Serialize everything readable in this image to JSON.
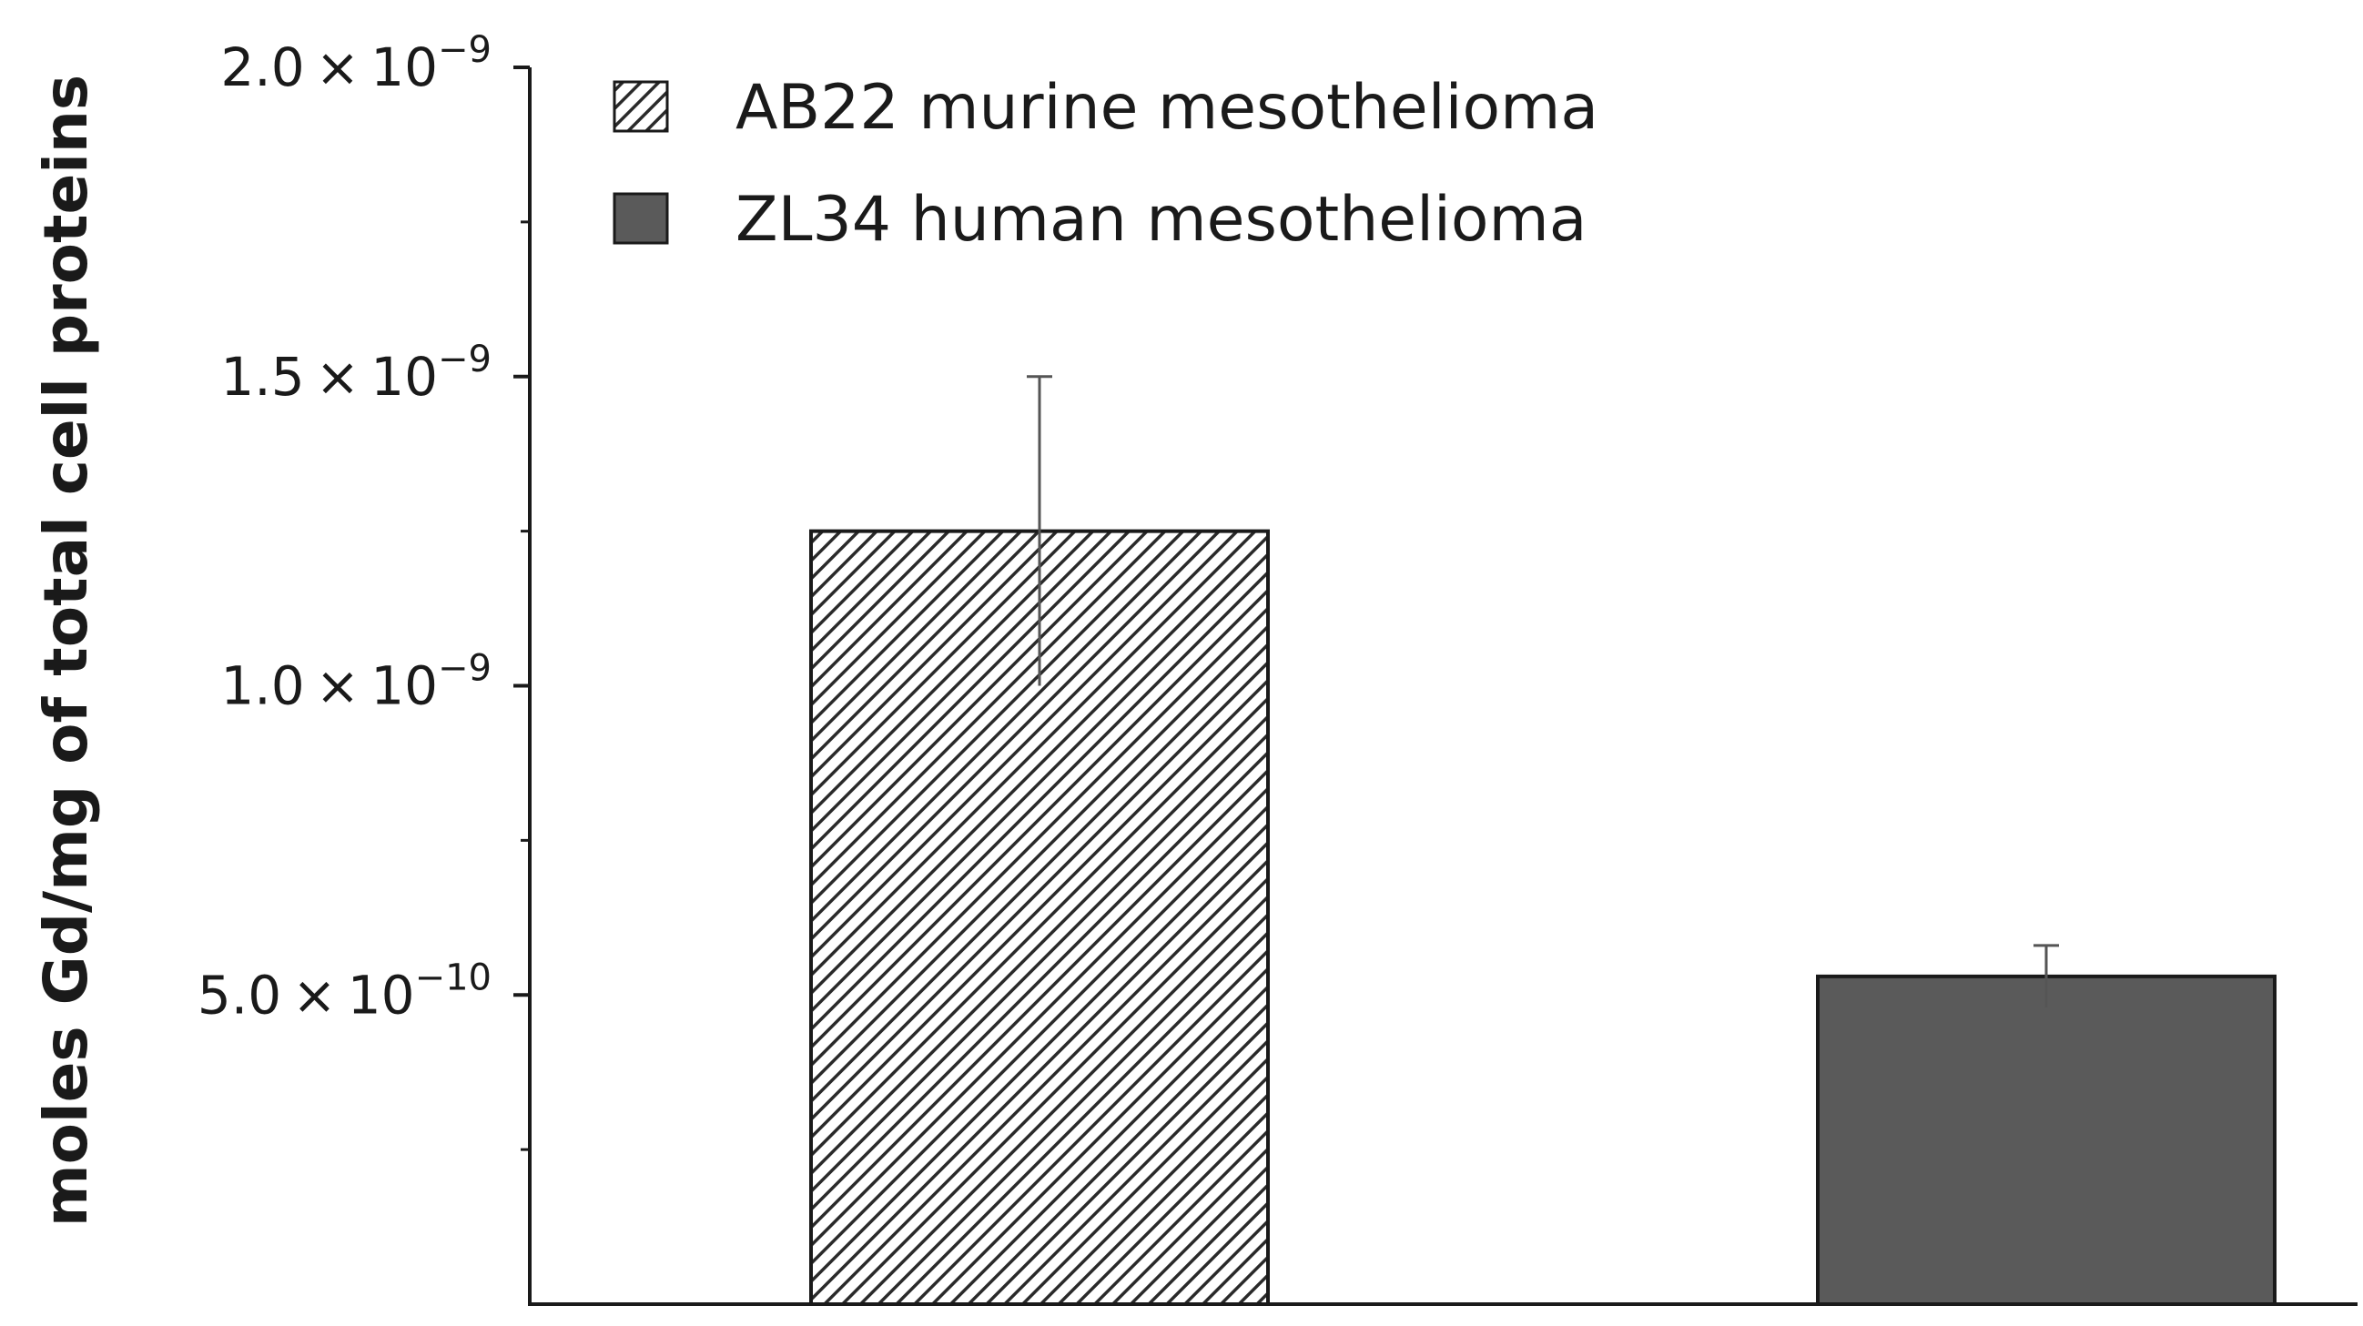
{
  "chart_data": {
    "type": "bar",
    "categories": [
      "",
      ""
    ],
    "series": [
      {
        "name": "AB22 murine mesothelioma",
        "values": [
          1.25e-09,
          null
        ],
        "errors": [
          2.5e-10,
          null
        ],
        "pattern": "hatched",
        "color": "#ffffff"
      },
      {
        "name": "ZL34 human mesothelioma",
        "values": [
          null,
          5.3e-10
        ],
        "errors": [
          null,
          5e-11
        ],
        "pattern": "solid",
        "color": "#5a5a5a"
      }
    ],
    "title": "",
    "xlabel": "",
    "ylabel": "moles Gd/mg of total cell proteins",
    "ylim": [
      0,
      2e-09
    ],
    "yticks": [
      {
        "value": 5e-10,
        "mantissa": "5.0",
        "times": "×",
        "base": "10",
        "exponent": "−10"
      },
      {
        "value": 1e-09,
        "mantissa": "1.0",
        "times": "×",
        "base": "10",
        "exponent": "−9"
      },
      {
        "value": 1.5e-09,
        "mantissa": "1.5",
        "times": "×",
        "base": "10",
        "exponent": "−9"
      },
      {
        "value": 2e-09,
        "mantissa": "2.0",
        "times": "×",
        "base": "10",
        "exponent": "−9"
      }
    ],
    "minor_ticks": [
      2.5e-10,
      7.5e-10,
      1.25e-09,
      1.75e-09
    ],
    "grid": false,
    "legend_position": "top-left"
  }
}
